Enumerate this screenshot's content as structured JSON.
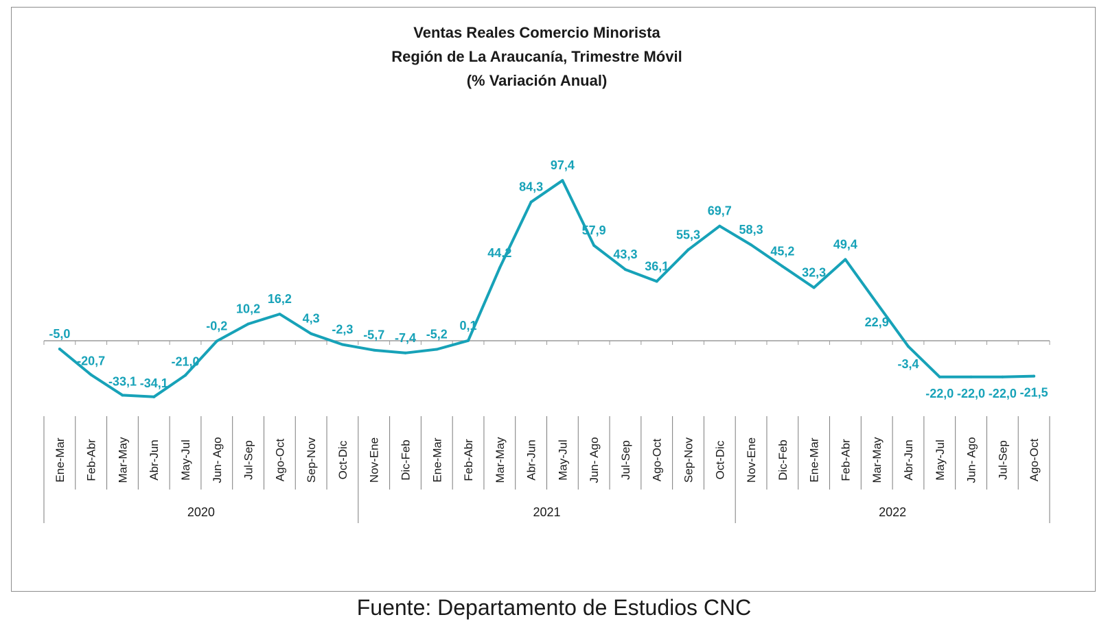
{
  "chart_data": {
    "type": "line",
    "title": [
      "Ventas Reales Comercio Minorista",
      "Región de La Araucanía, Trimestre Móvil",
      "(% Variación Anual)"
    ],
    "categories": [
      "Ene-Mar",
      "Feb-Abr",
      "Mar-May",
      "Abr-Jun",
      "May-Jul",
      "Jun- Ago",
      "Jul-Sep",
      "Ago-Oct",
      "Sep-Nov",
      "Oct-Dic",
      "Nov-Ene",
      "Dic-Feb",
      "Ene-Mar",
      "Feb-Abr",
      "Mar-May",
      "Abr-Jun",
      "May-Jul",
      "Jun- Ago",
      "Jul-Sep",
      "Ago-Oct",
      "Sep-Nov",
      "Oct-Dic",
      "Nov-Ene",
      "Dic-Feb",
      "Ene-Mar",
      "Feb-Abr",
      "Mar-May",
      "Abr-Jun",
      "May-Jul",
      "Jun- Ago",
      "Jul-Sep",
      "Ago-Oct"
    ],
    "values": [
      -5.0,
      -20.7,
      -33.1,
      -34.1,
      -21.0,
      -0.2,
      10.2,
      16.2,
      4.3,
      -2.3,
      -5.7,
      -7.4,
      -5.2,
      0.1,
      44.2,
      84.3,
      97.4,
      57.9,
      43.3,
      36.1,
      55.3,
      69.7,
      58.3,
      45.2,
      32.3,
      49.4,
      22.9,
      -3.4,
      -22.0,
      -22.0,
      -22.0,
      -21.5
    ],
    "value_labels": [
      "-5,0",
      "-20,7",
      "-33,1",
      "-34,1",
      "-21,0",
      "-0,2",
      "10,2",
      "16,2",
      "4,3",
      "-2,3",
      "-5,7",
      "-7,4",
      "-5,2",
      "0,1",
      "44,2",
      "84,3",
      "97,4",
      "57,9",
      "43,3",
      "36,1",
      "55,3",
      "69,7",
      "58,3",
      "45,2",
      "32,3",
      "49,4",
      "22,9",
      "-3,4",
      "-22,0",
      "-22,0",
      "-22,0",
      "-21,5"
    ],
    "groups": [
      {
        "label": "2020",
        "count": 10
      },
      {
        "label": "2021",
        "count": 12
      },
      {
        "label": "2022",
        "count": 10
      }
    ],
    "ylim": [
      -40,
      100
    ],
    "xlabel": "",
    "ylabel": "",
    "grid": false,
    "legend": "none",
    "line_color": "#17a2b8"
  },
  "source_note": "Fuente: Departamento de Estudios CNC"
}
